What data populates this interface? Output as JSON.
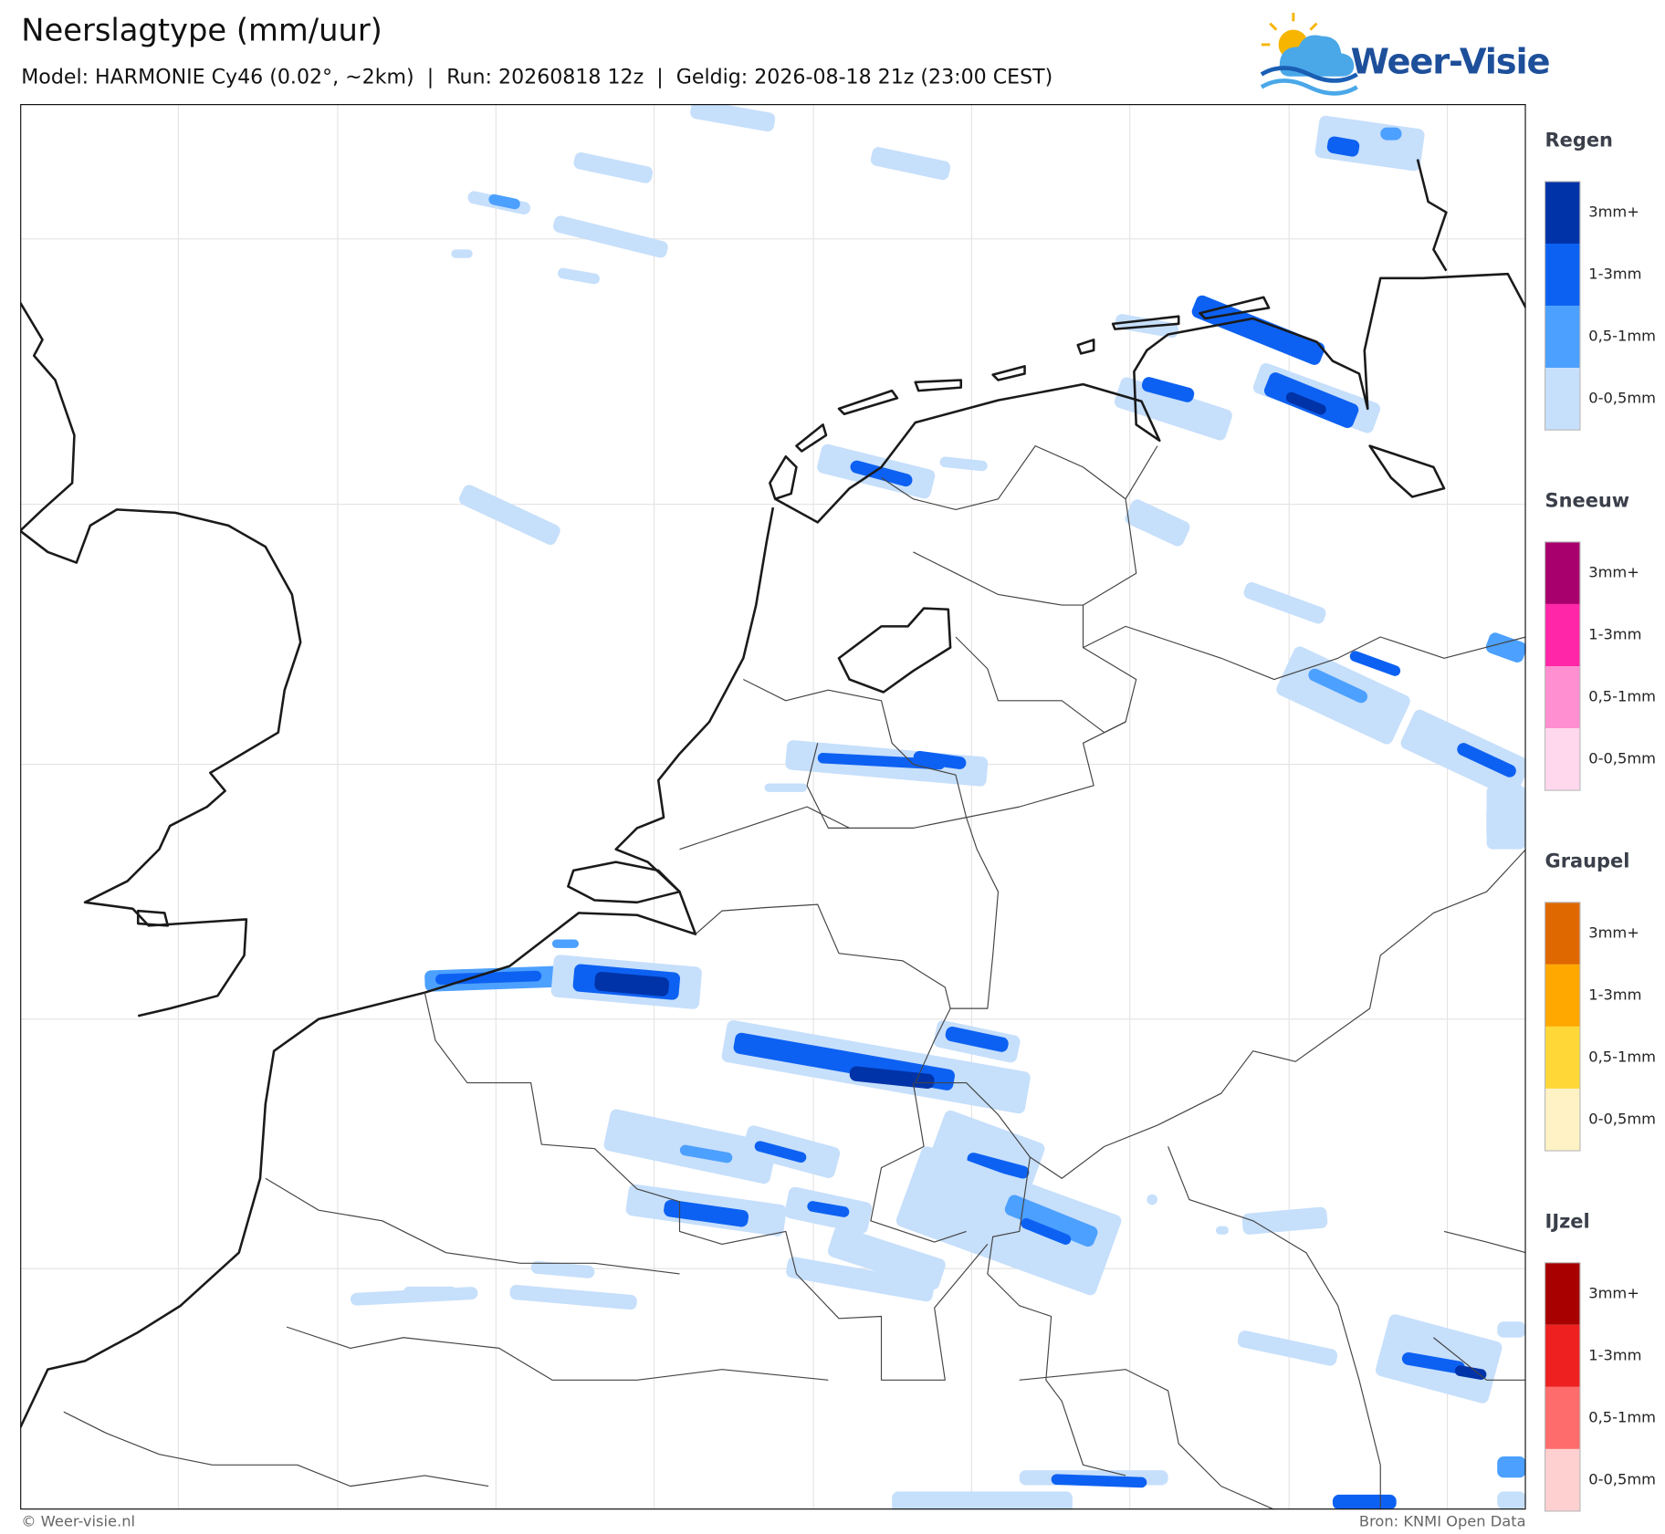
{
  "header": {
    "title": "Neerslagtype (mm/uur)",
    "subtitle": "Model: HARMONIE Cy46 (0.02°, ~2km)  |  Run: 20260818 12z  |  Geldig: 2026-08-18 21z (23:00 CEST)"
  },
  "logo": {
    "text": "Weer-Visie"
  },
  "legend": {
    "groups": [
      {
        "title": "Regen",
        "items": [
          {
            "label": "3mm+",
            "color": "#0033a8"
          },
          {
            "label": "1-3mm",
            "color": "#0d61f2"
          },
          {
            "label": "0,5-1mm",
            "color": "#4ca0ff"
          },
          {
            "label": "0-0,5mm",
            "color": "#c6dffb"
          }
        ]
      },
      {
        "title": "Sneeuw",
        "items": [
          {
            "label": "3mm+",
            "color": "#a8006c"
          },
          {
            "label": "1-3mm",
            "color": "#ff26a8"
          },
          {
            "label": "0,5-1mm",
            "color": "#ff8fd0"
          },
          {
            "label": "0-0,5mm",
            "color": "#ffd8ee"
          }
        ]
      },
      {
        "title": "Graupel",
        "items": [
          {
            "label": "3mm+",
            "color": "#e06800"
          },
          {
            "label": "1-3mm",
            "color": "#ffa800"
          },
          {
            "label": "0,5-1mm",
            "color": "#ffd838"
          },
          {
            "label": "0-0,5mm",
            "color": "#fff2c4"
          }
        ]
      },
      {
        "title": "IJzel",
        "items": [
          {
            "label": "3mm+",
            "color": "#a80000"
          },
          {
            "label": "1-3mm",
            "color": "#ee2020"
          },
          {
            "label": "0,5-1mm",
            "color": "#ff6c6c"
          },
          {
            "label": "0-0,5mm",
            "color": "#ffd0d0"
          }
        ]
      }
    ]
  },
  "footer": {
    "left": "© Weer-visie.nl",
    "right": "Bron: KNMI Open Data"
  }
}
